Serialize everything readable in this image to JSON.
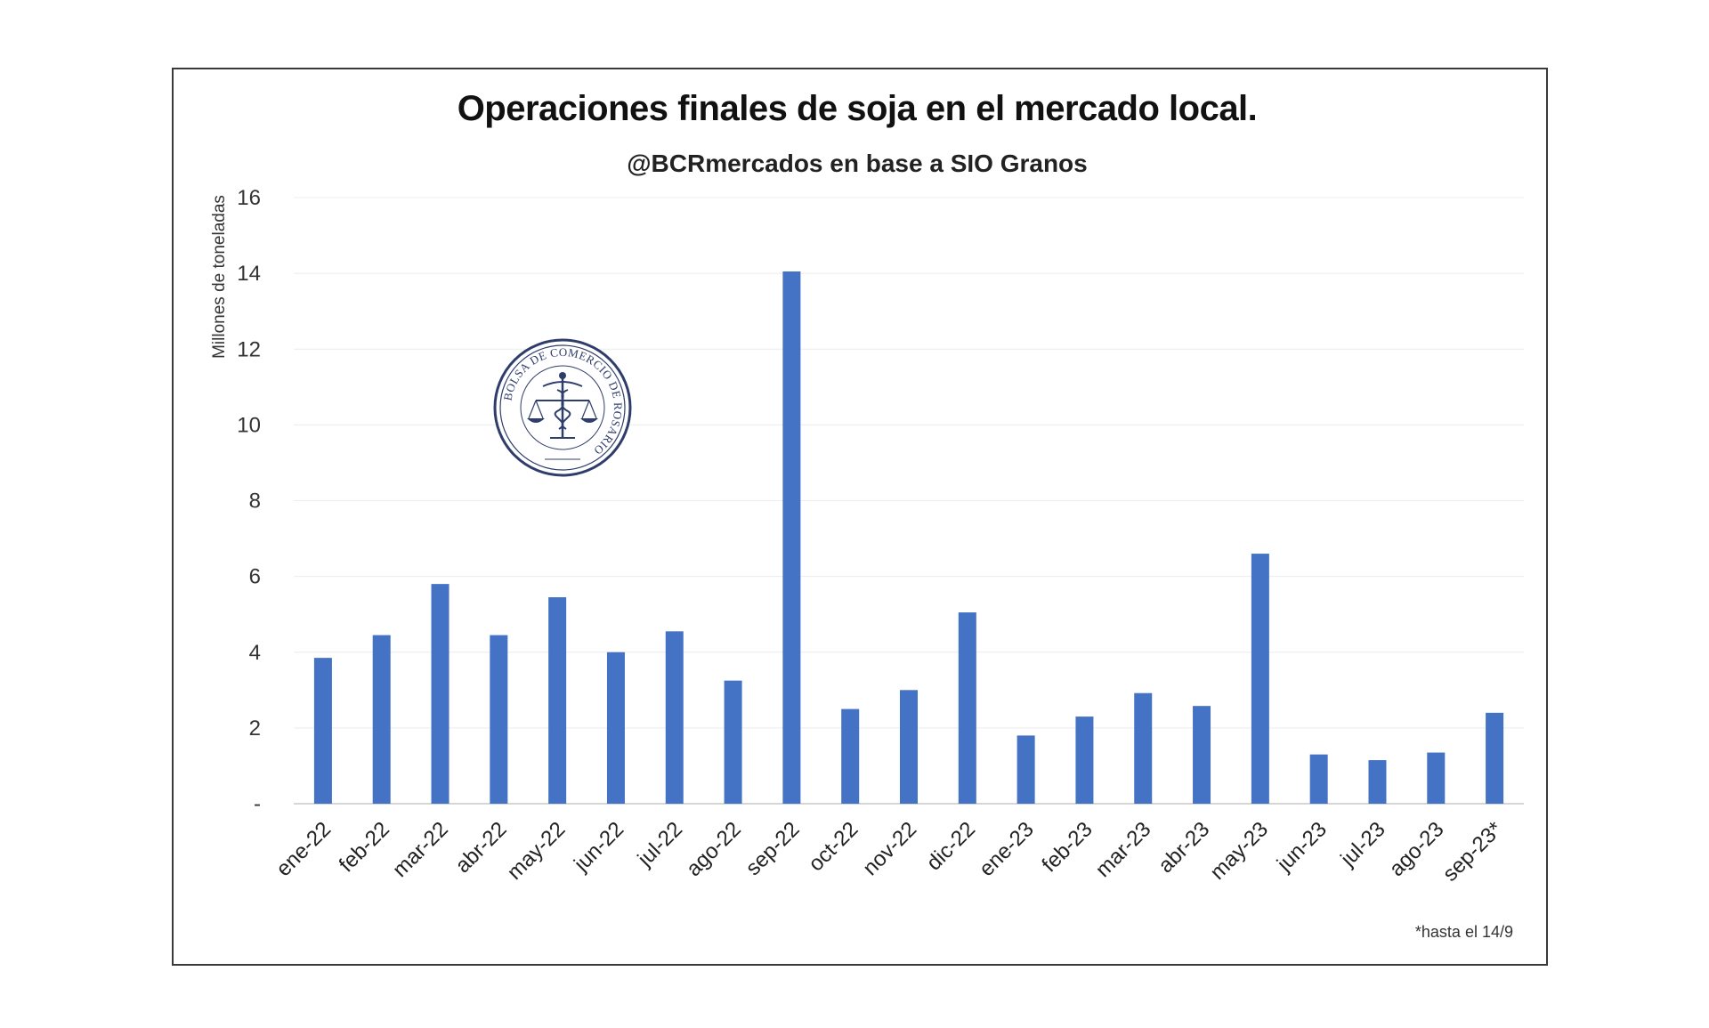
{
  "chart_data": {
    "type": "bar",
    "title": "Operaciones finales de soja en el mercado local.",
    "subtitle": "@BCRmercados en base a SIO Granos",
    "ylabel": "Millones de toneladas",
    "xlabel": "",
    "ylim": [
      0,
      16
    ],
    "yticks": [
      0,
      2,
      4,
      6,
      8,
      10,
      12,
      14,
      16
    ],
    "ytick_labels": [
      "-",
      "2",
      "4",
      "6",
      "8",
      "10",
      "12",
      "14",
      "16"
    ],
    "grid": true,
    "bar_color": "#4472c4",
    "categories": [
      "ene-22",
      "feb-22",
      "mar-22",
      "abr-22",
      "may-22",
      "jun-22",
      "jul-22",
      "ago-22",
      "sep-22",
      "oct-22",
      "nov-22",
      "dic-22",
      "ene-23",
      "feb-23",
      "mar-23",
      "abr-23",
      "may-23",
      "jun-23",
      "jul-23",
      "ago-23",
      "sep-23*"
    ],
    "values": [
      3.85,
      4.45,
      5.8,
      4.45,
      5.45,
      4.0,
      4.55,
      3.25,
      14.05,
      2.5,
      3.0,
      5.05,
      1.8,
      2.3,
      2.92,
      2.58,
      6.6,
      1.3,
      1.15,
      1.35,
      2.4
    ],
    "footnote": "*hasta el 14/9"
  },
  "logo": {
    "text": "BOLSA DE COMERCIO DE ROSARIO",
    "icon": "bcr-seal-icon",
    "color": "#2f3d6b"
  }
}
